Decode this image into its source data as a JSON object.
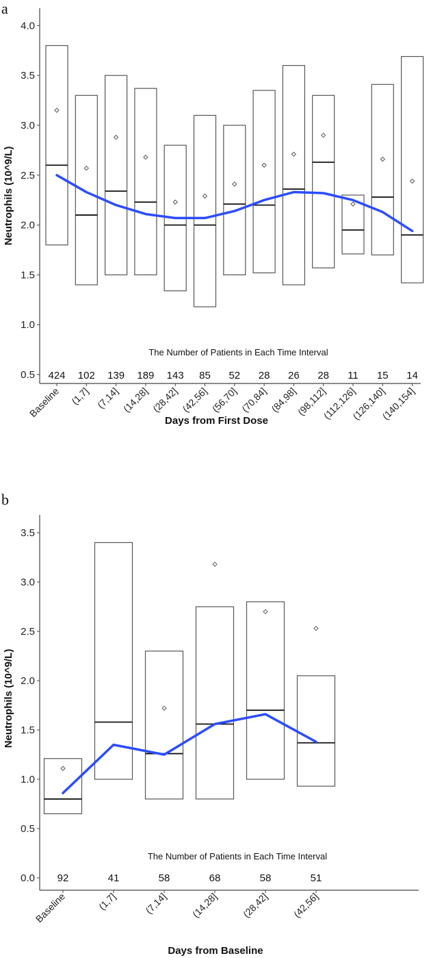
{
  "chart_data": [
    {
      "panel": "a",
      "type": "box",
      "ylabel": "Neutrophils (10^9/L)",
      "xlabel": "Days from First Dose",
      "ylim": [
        0.45,
        4.15
      ],
      "yticks": [
        0.5,
        1.0,
        1.5,
        2.0,
        2.5,
        3.0,
        3.5,
        4.0
      ],
      "annotation": "The Number of Patients in Each Time Interval",
      "categories": [
        "Baseline",
        "(1,7]",
        "(7,14]",
        "(14,28]",
        "(28,42]",
        "(42,56]",
        "(56,70]",
        "(70,84]",
        "(84,98]",
        "(98,112]",
        "(112,126]",
        "(126,140]",
        "(140,154]"
      ],
      "counts": [
        "424",
        "102",
        "139",
        "189",
        "143",
        "85",
        "52",
        "28",
        "26",
        "28",
        "11",
        "15",
        "14"
      ],
      "q1": [
        1.8,
        1.4,
        1.5,
        1.5,
        1.34,
        1.18,
        1.5,
        1.52,
        1.4,
        1.57,
        1.71,
        1.7,
        1.42
      ],
      "median": [
        2.6,
        2.1,
        2.34,
        2.23,
        2.0,
        2.0,
        2.21,
        2.2,
        2.36,
        2.63,
        1.95,
        2.28,
        1.9
      ],
      "q3": [
        3.8,
        3.3,
        3.5,
        3.37,
        2.8,
        3.1,
        3.0,
        3.35,
        3.6,
        3.3,
        2.3,
        3.41,
        3.69
      ],
      "mean": [
        3.15,
        2.57,
        2.88,
        2.68,
        2.23,
        2.29,
        2.41,
        2.6,
        2.71,
        2.9,
        2.21,
        2.66,
        2.44
      ],
      "trend": [
        2.5,
        2.33,
        2.2,
        2.11,
        2.07,
        2.07,
        2.14,
        2.25,
        2.33,
        2.32,
        2.25,
        2.13,
        1.94
      ],
      "trend_color": "#2b4cff"
    },
    {
      "panel": "b",
      "type": "box",
      "ylabel": "Neutrophils (10^9/L)",
      "xlabel": "Days from Baseline",
      "ylim": [
        -0.1,
        3.67
      ],
      "yticks": [
        0.0,
        0.5,
        1.0,
        1.5,
        2.0,
        2.5,
        3.0,
        3.5
      ],
      "annotation": "The Number of Patients in Each Time Interval",
      "categories": [
        "Baseline",
        "(1,7]",
        "(7,14]",
        "(14,28]",
        "(28,42]",
        "(42,56]"
      ],
      "counts": [
        "92",
        "41",
        "58",
        "68",
        "58",
        "51"
      ],
      "q1": [
        0.65,
        1.0,
        0.8,
        0.8,
        1.0,
        0.93
      ],
      "median": [
        0.8,
        1.58,
        1.26,
        1.56,
        1.7,
        1.37
      ],
      "q3": [
        1.21,
        3.4,
        2.3,
        2.75,
        2.8,
        2.05
      ],
      "mean": [
        1.11,
        null,
        1.72,
        3.18,
        2.7,
        2.53
      ],
      "trend": [
        0.86,
        1.35,
        1.25,
        1.56,
        1.66,
        1.38
      ],
      "trend_color": "#2b4cff"
    }
  ]
}
